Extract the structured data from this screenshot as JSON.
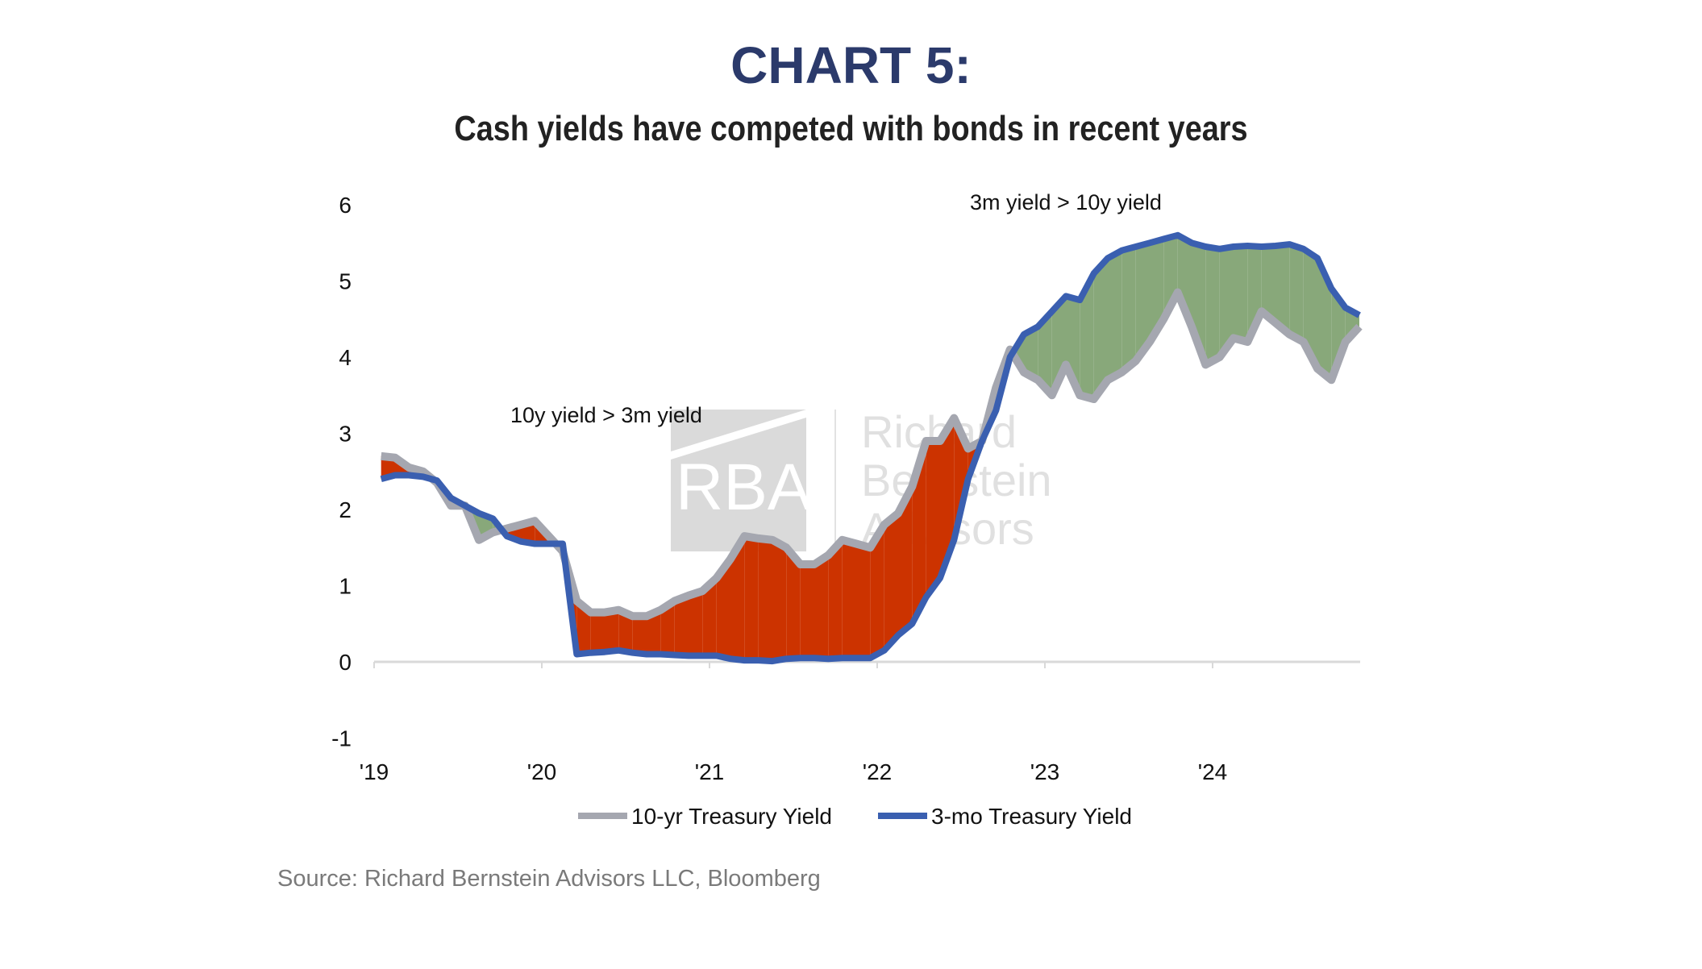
{
  "title": "CHART 5:",
  "subtitle": "Cash yields have competed with bonds in recent years",
  "source": "Source: Richard Bernstein Advisors LLC, Bloomberg",
  "watermark": {
    "logo": "RBA",
    "name_lines": [
      "Richard",
      "Bernstein",
      "Advisors"
    ]
  },
  "chart_data": {
    "type": "line",
    "title": "",
    "xlabel": "",
    "ylabel": "",
    "xlim": [
      2019.0,
      2024.88
    ],
    "ylim": [
      -1,
      6
    ],
    "yticks": [
      -1,
      0,
      1,
      2,
      3,
      4,
      5,
      6
    ],
    "xtick_labels": [
      "'19",
      "'20",
      "'21",
      "'22",
      "'23",
      "'24"
    ],
    "xtick_years": [
      2019,
      2020,
      2021,
      2022,
      2023,
      2024
    ],
    "grid": false,
    "legend_position": "bottom",
    "annotations": [
      {
        "text": "10y yield > 3m yield",
        "x": 2020.2,
        "y": 3.3
      },
      {
        "text": "3m yield > 10y yield",
        "x": 2024.1,
        "y": 6.0
      }
    ],
    "fill_colors": {
      "ten_year_above": "#cc3300",
      "three_month_above": "#88a87a"
    },
    "x_months": [
      "2019-01",
      "2019-02",
      "2019-03",
      "2019-04",
      "2019-05",
      "2019-06",
      "2019-07",
      "2019-08",
      "2019-09",
      "2019-10",
      "2019-11",
      "2019-12",
      "2020-01",
      "2020-02",
      "2020-03",
      "2020-04",
      "2020-05",
      "2020-06",
      "2020-07",
      "2020-08",
      "2020-09",
      "2020-10",
      "2020-11",
      "2020-12",
      "2021-01",
      "2021-02",
      "2021-03",
      "2021-04",
      "2021-05",
      "2021-06",
      "2021-07",
      "2021-08",
      "2021-09",
      "2021-10",
      "2021-11",
      "2021-12",
      "2022-01",
      "2022-02",
      "2022-03",
      "2022-04",
      "2022-05",
      "2022-06",
      "2022-07",
      "2022-08",
      "2022-09",
      "2022-10",
      "2022-11",
      "2022-12",
      "2023-01",
      "2023-02",
      "2023-03",
      "2023-04",
      "2023-05",
      "2023-06",
      "2023-07",
      "2023-08",
      "2023-09",
      "2023-10",
      "2023-11",
      "2023-12",
      "2024-01",
      "2024-02",
      "2024-03",
      "2024-04",
      "2024-05",
      "2024-06",
      "2024-07",
      "2024-08",
      "2024-09",
      "2024-10",
      "2024-11"
    ],
    "series": [
      {
        "name": "10-yr Treasury Yield",
        "color": "#a5a7b0",
        "values": [
          2.7,
          2.68,
          2.55,
          2.5,
          2.35,
          2.05,
          2.05,
          1.6,
          1.7,
          1.75,
          1.8,
          1.85,
          1.65,
          1.45,
          0.8,
          0.65,
          0.65,
          0.68,
          0.6,
          0.6,
          0.68,
          0.8,
          0.87,
          0.93,
          1.1,
          1.35,
          1.65,
          1.62,
          1.6,
          1.5,
          1.28,
          1.28,
          1.4,
          1.6,
          1.55,
          1.5,
          1.8,
          1.95,
          2.3,
          2.9,
          2.9,
          3.2,
          2.8,
          2.9,
          3.6,
          4.1,
          3.8,
          3.7,
          3.5,
          3.9,
          3.5,
          3.45,
          3.7,
          3.8,
          3.95,
          4.2,
          4.5,
          4.85,
          4.4,
          3.9,
          4.0,
          4.25,
          4.2,
          4.6,
          4.45,
          4.3,
          4.2,
          3.85,
          3.7,
          4.2,
          4.4
        ]
      },
      {
        "name": "3-mo Treasury Yield",
        "color": "#3a5fb0",
        "values": [
          2.4,
          2.45,
          2.45,
          2.43,
          2.38,
          2.15,
          2.05,
          1.95,
          1.88,
          1.65,
          1.58,
          1.55,
          1.55,
          1.55,
          0.1,
          0.12,
          0.13,
          0.15,
          0.12,
          0.1,
          0.1,
          0.09,
          0.08,
          0.08,
          0.08,
          0.04,
          0.02,
          0.02,
          0.01,
          0.04,
          0.05,
          0.05,
          0.04,
          0.05,
          0.05,
          0.05,
          0.15,
          0.35,
          0.5,
          0.85,
          1.1,
          1.6,
          2.4,
          2.9,
          3.3,
          4.0,
          4.3,
          4.4,
          4.6,
          4.8,
          4.75,
          5.1,
          5.3,
          5.4,
          5.45,
          5.5,
          5.55,
          5.6,
          5.5,
          5.45,
          5.42,
          5.45,
          5.46,
          5.45,
          5.46,
          5.48,
          5.42,
          5.3,
          4.9,
          4.65,
          4.55
        ]
      }
    ]
  }
}
